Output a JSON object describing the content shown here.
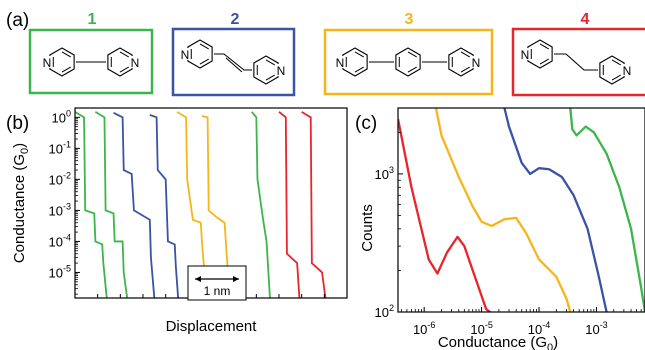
{
  "panels": {
    "a": "(a)",
    "b": "(b)",
    "c": "(c)"
  },
  "molecules": [
    {
      "number": "1",
      "color": "#3cb54a"
    },
    {
      "number": "2",
      "color": "#3a53a4"
    },
    {
      "number": "3",
      "color": "#f5b51b"
    },
    {
      "number": "4",
      "color": "#e8242c"
    }
  ],
  "atom_label": "N",
  "scale_bar_label": "1 nm",
  "chart_data": [
    {
      "panel": "(b)",
      "type": "line",
      "xlabel": "Displacement",
      "ylabel": "Conductance (G0)",
      "yscale": "log",
      "ylim": [
        1.5e-06,
        2
      ],
      "yticks": [
        {
          "v": 1,
          "m": "10",
          "e": "0"
        },
        {
          "v": 0.1,
          "m": "10",
          "e": "-1"
        },
        {
          "v": 0.01,
          "m": "10",
          "e": "-2"
        },
        {
          "v": 0.001,
          "m": "10",
          "e": "-3"
        },
        {
          "v": 0.0001,
          "m": "10",
          "e": "-4"
        },
        {
          "v": 1e-05,
          "m": "10",
          "e": "-5"
        }
      ],
      "series": [
        {
          "color": "#3cb54a",
          "points": [
            [
              0,
              1.5
            ],
            [
              8,
              1.0
            ],
            [
              9,
              0.001
            ],
            [
              17,
              0.0008
            ],
            [
              18,
              0.0001
            ],
            [
              24,
              8e-05
            ],
            [
              25,
              2e-05
            ],
            [
              28,
              1.5e-06
            ]
          ]
        },
        {
          "color": "#3cb54a",
          "points": [
            [
              18,
              1.5
            ],
            [
              26,
              1.0
            ],
            [
              27,
              0.001
            ],
            [
              34,
              0.0008
            ],
            [
              35,
              0.0001
            ],
            [
              42,
              0.0001
            ],
            [
              43,
              1e-05
            ],
            [
              46,
              1.5e-06
            ]
          ]
        },
        {
          "color": "#3a53a4",
          "points": [
            [
              34,
              1.4
            ],
            [
              42,
              1.0
            ],
            [
              43,
              0.02
            ],
            [
              50,
              0.015
            ],
            [
              52,
              0.001
            ],
            [
              66,
              0.0005
            ],
            [
              67,
              3e-05
            ],
            [
              70,
              1.5e-06
            ]
          ]
        },
        {
          "color": "#3a53a4",
          "points": [
            [
              66,
              1.2
            ],
            [
              72,
              1.0
            ],
            [
              73,
              0.02
            ],
            [
              80,
              0.01
            ],
            [
              82,
              0.0001
            ],
            [
              88,
              8e-05
            ],
            [
              89,
              1.5e-05
            ],
            [
              91,
              1.5e-06
            ]
          ]
        },
        {
          "color": "#f5b51b",
          "points": [
            [
              90,
              1.5
            ],
            [
              98,
              1.0
            ],
            [
              99,
              0.01
            ],
            [
              104,
              0.0005
            ],
            [
              111,
              0.0004
            ],
            [
              112,
              0.0001
            ],
            [
              116,
              1.5e-06
            ]
          ]
        },
        {
          "color": "#f5b51b",
          "points": [
            [
              112,
              1.1
            ],
            [
              117,
              1.0
            ],
            [
              118,
              0.001
            ],
            [
              125,
              0.0006
            ],
            [
              132,
              0.0004
            ],
            [
              134,
              3e-05
            ],
            [
              137,
              1.5e-06
            ]
          ]
        },
        {
          "color": "#3cb54a",
          "points": [
            [
              156,
              1.5
            ],
            [
              160,
              1.0
            ],
            [
              161,
              0.01
            ],
            [
              166,
              0.0005
            ],
            [
              169,
              0.0001
            ],
            [
              172,
              1.5e-06
            ]
          ]
        },
        {
          "color": "#e8242c",
          "points": [
            [
              180,
              1.5
            ],
            [
              186,
              1.0
            ],
            [
              187,
              4e-05
            ],
            [
              196,
              2e-05
            ],
            [
              198,
              1.5e-06
            ]
          ]
        },
        {
          "color": "#e8242c",
          "points": [
            [
              200,
              1.5
            ],
            [
              208,
              1.0
            ],
            [
              209,
              2e-05
            ],
            [
              218,
              1e-05
            ],
            [
              221,
              1.5e-06
            ]
          ]
        }
      ]
    },
    {
      "panel": "(c)",
      "type": "line",
      "xlabel": "Conductance (G0)",
      "ylabel": "Counts",
      "xscale": "log",
      "yscale": "log",
      "xlim": [
        3.5e-07,
        0.007
      ],
      "ylim": [
        100,
        3000
      ],
      "xticks": [
        {
          "v": 1e-06,
          "m": "10",
          "e": "-6"
        },
        {
          "v": 1e-05,
          "m": "10",
          "e": "-5"
        },
        {
          "v": 0.0001,
          "m": "10",
          "e": "-4"
        },
        {
          "v": 0.001,
          "m": "10",
          "e": "-3"
        }
      ],
      "yticks": [
        {
          "v": 1000,
          "m": "10",
          "e": "3"
        },
        {
          "v": 100,
          "m": "10",
          "e": "2"
        }
      ],
      "series": [
        {
          "color": "#e8242c",
          "points": [
            [
              3.5e-07,
              2500
            ],
            [
              6e-07,
              800
            ],
            [
              1.2e-06,
              240
            ],
            [
              1.7e-06,
              190
            ],
            [
              2.5e-06,
              270
            ],
            [
              3.8e-06,
              350
            ],
            [
              5e-06,
              300
            ],
            [
              7e-06,
              200
            ],
            [
              1.2e-05,
              105
            ],
            [
              1.4e-05,
              100
            ]
          ]
        },
        {
          "color": "#f5b51b",
          "points": [
            [
              1.6e-06,
              3000
            ],
            [
              2e-06,
              1900
            ],
            [
              4e-06,
              950
            ],
            [
              7e-06,
              580
            ],
            [
              1e-05,
              450
            ],
            [
              1.5e-05,
              420
            ],
            [
              2.5e-05,
              470
            ],
            [
              4e-05,
              480
            ],
            [
              6e-05,
              370
            ],
            [
              0.0001,
              240
            ],
            [
              0.0002,
              180
            ],
            [
              0.0003,
              125
            ],
            [
              0.00035,
              100
            ]
          ]
        },
        {
          "color": "#3a53a4",
          "points": [
            [
              2.5e-05,
              3000
            ],
            [
              3e-05,
              2200
            ],
            [
              5e-05,
              1200
            ],
            [
              7e-05,
              1000
            ],
            [
              0.0001,
              1100
            ],
            [
              0.00015,
              1080
            ],
            [
              0.00025,
              950
            ],
            [
              0.0004,
              700
            ],
            [
              0.0007,
              400
            ],
            [
              0.0011,
              180
            ],
            [
              0.0015,
              100
            ]
          ]
        },
        {
          "color": "#3cb54a",
          "points": [
            [
              0.00035,
              3000
            ],
            [
              0.00038,
              2100
            ],
            [
              0.00045,
              1900
            ],
            [
              0.00065,
              2200
            ],
            [
              0.0009,
              2000
            ],
            [
              0.0015,
              1400
            ],
            [
              0.0025,
              800
            ],
            [
              0.004,
              400
            ],
            [
              0.006,
              150
            ],
            [
              0.007,
              100
            ]
          ]
        }
      ]
    }
  ]
}
